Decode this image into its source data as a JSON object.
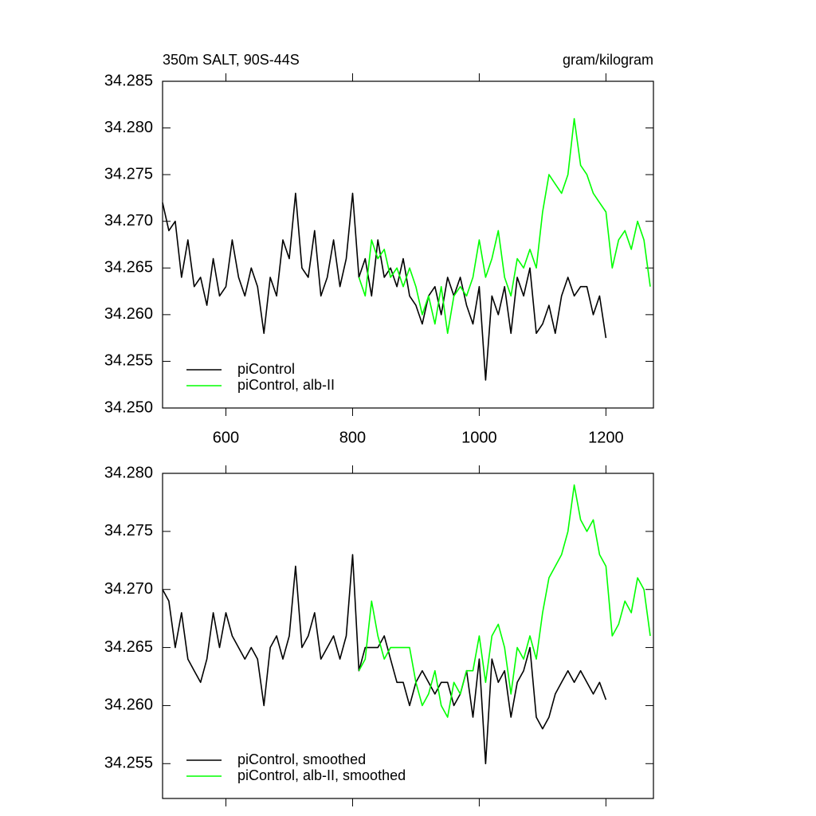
{
  "chart_data": [
    {
      "type": "line",
      "title": "350m SALT, 90S-44S",
      "subtitle": "gram/kilogram",
      "xlim": [
        500,
        1275
      ],
      "xticks": [
        600,
        800,
        1000,
        1200
      ],
      "xtick_labels": true,
      "ylim": [
        34.25,
        34.285
      ],
      "yticks": [
        {
          "value": 34.25,
          "label": "34.250"
        },
        34.255,
        {
          "value": 34.26,
          "label": "34.260"
        },
        34.265,
        {
          "value": 34.27,
          "label": "34.270"
        },
        34.275,
        {
          "value": 34.28,
          "label": "34.280"
        },
        34.285
      ],
      "legend": "lower left",
      "series": [
        {
          "name": "piControl",
          "color": "#000000",
          "x": [
            500,
            510,
            520,
            530,
            540,
            550,
            560,
            570,
            580,
            590,
            600,
            610,
            620,
            630,
            640,
            650,
            660,
            670,
            680,
            690,
            700,
            710,
            720,
            730,
            740,
            750,
            760,
            770,
            780,
            790,
            800,
            810,
            820,
            830,
            840,
            850,
            860,
            870,
            880,
            890,
            900,
            910,
            920,
            930,
            940,
            950,
            960,
            970,
            980,
            990,
            1000,
            1010,
            1020,
            1030,
            1040,
            1050,
            1060,
            1070,
            1080,
            1090,
            1100,
            1110,
            1120,
            1130,
            1140,
            1150,
            1160,
            1170,
            1180,
            1190,
            1200
          ],
          "values": [
            34.272,
            34.269,
            34.27,
            34.264,
            34.268,
            34.263,
            34.264,
            34.261,
            34.266,
            34.262,
            34.263,
            34.268,
            34.264,
            34.262,
            34.265,
            34.263,
            34.258,
            34.264,
            34.262,
            34.268,
            34.266,
            34.273,
            34.265,
            34.264,
            34.269,
            34.262,
            34.264,
            34.268,
            34.263,
            34.266,
            34.273,
            34.264,
            34.266,
            34.262,
            34.268,
            34.264,
            34.265,
            34.263,
            34.266,
            34.262,
            34.261,
            34.259,
            34.262,
            34.263,
            34.26,
            34.264,
            34.262,
            34.264,
            34.261,
            34.259,
            34.263,
            34.253,
            34.262,
            34.26,
            34.263,
            34.258,
            34.264,
            34.262,
            34.265,
            34.258,
            34.259,
            34.261,
            34.258,
            34.262,
            34.264,
            34.262,
            34.263,
            34.263,
            34.26,
            34.262,
            34.2575
          ]
        },
        {
          "name": "piControl, alb-II",
          "color": "#00ff00",
          "x": [
            810,
            820,
            830,
            840,
            850,
            860,
            870,
            880,
            890,
            900,
            910,
            920,
            930,
            940,
            950,
            960,
            970,
            980,
            990,
            1000,
            1010,
            1020,
            1030,
            1040,
            1050,
            1060,
            1070,
            1080,
            1090,
            1100,
            1110,
            1120,
            1130,
            1140,
            1150,
            1160,
            1170,
            1180,
            1190,
            1200,
            1210,
            1220,
            1230,
            1240,
            1250,
            1260,
            1270
          ],
          "values": [
            34.264,
            34.262,
            34.268,
            34.266,
            34.267,
            34.264,
            34.265,
            34.263,
            34.265,
            34.263,
            34.26,
            34.262,
            34.259,
            34.263,
            34.258,
            34.262,
            34.263,
            34.262,
            34.264,
            34.268,
            34.264,
            34.266,
            34.269,
            34.264,
            34.262,
            34.266,
            34.265,
            34.267,
            34.265,
            34.271,
            34.275,
            34.274,
            34.273,
            34.275,
            34.281,
            34.276,
            34.275,
            34.273,
            34.272,
            34.271,
            34.265,
            34.268,
            34.269,
            34.267,
            34.27,
            34.268,
            34.263
          ]
        }
      ]
    },
    {
      "type": "line",
      "xlim": [
        500,
        1275
      ],
      "xticks": [
        600,
        800,
        1000,
        1200
      ],
      "xtick_labels": false,
      "ylim": [
        34.252,
        34.28
      ],
      "yticks": [
        34.255,
        {
          "value": 34.26,
          "label": "34.260"
        },
        34.265,
        {
          "value": 34.27,
          "label": "34.270"
        },
        34.275,
        {
          "value": 34.28,
          "label": "34.280"
        }
      ],
      "legend": "lower left",
      "series": [
        {
          "name": "piControl, smoothed",
          "color": "#000000",
          "x": [
            500,
            510,
            520,
            530,
            540,
            550,
            560,
            570,
            580,
            590,
            600,
            610,
            620,
            630,
            640,
            650,
            660,
            670,
            680,
            690,
            700,
            710,
            720,
            730,
            740,
            750,
            760,
            770,
            780,
            790,
            800,
            810,
            820,
            830,
            840,
            850,
            860,
            870,
            880,
            890,
            900,
            910,
            920,
            930,
            940,
            950,
            960,
            970,
            980,
            990,
            1000,
            1010,
            1020,
            1030,
            1040,
            1050,
            1060,
            1070,
            1080,
            1090,
            1100,
            1110,
            1120,
            1130,
            1140,
            1150,
            1160,
            1170,
            1180,
            1190,
            1200
          ],
          "values": [
            34.27,
            34.269,
            34.265,
            34.268,
            34.264,
            34.263,
            34.262,
            34.264,
            34.268,
            34.265,
            34.268,
            34.266,
            34.265,
            34.264,
            34.265,
            34.264,
            34.26,
            34.265,
            34.266,
            34.264,
            34.266,
            34.272,
            34.265,
            34.266,
            34.268,
            34.264,
            34.265,
            34.266,
            34.264,
            34.266,
            34.273,
            34.263,
            34.265,
            34.265,
            34.265,
            34.266,
            34.264,
            34.262,
            34.262,
            34.26,
            34.262,
            34.263,
            34.262,
            34.261,
            34.262,
            34.262,
            34.26,
            34.261,
            34.263,
            34.259,
            34.264,
            34.255,
            34.264,
            34.262,
            34.263,
            34.259,
            34.262,
            34.263,
            34.265,
            34.259,
            34.258,
            34.259,
            34.261,
            34.262,
            34.263,
            34.262,
            34.263,
            34.262,
            34.261,
            34.262,
            34.2605
          ]
        },
        {
          "name": "piControl, alb-II, smoothed",
          "color": "#00ff00",
          "x": [
            810,
            820,
            830,
            840,
            850,
            860,
            870,
            880,
            890,
            900,
            910,
            920,
            930,
            940,
            950,
            960,
            970,
            980,
            990,
            1000,
            1010,
            1020,
            1030,
            1040,
            1050,
            1060,
            1070,
            1080,
            1090,
            1100,
            1110,
            1120,
            1130,
            1140,
            1150,
            1160,
            1170,
            1180,
            1190,
            1200,
            1210,
            1220,
            1230,
            1240,
            1250,
            1260,
            1270
          ],
          "values": [
            34.263,
            34.264,
            34.269,
            34.266,
            34.264,
            34.265,
            34.265,
            34.265,
            34.265,
            34.262,
            34.26,
            34.261,
            34.263,
            34.26,
            34.259,
            34.262,
            34.261,
            34.263,
            34.263,
            34.266,
            34.262,
            34.266,
            34.267,
            34.265,
            34.261,
            34.265,
            34.264,
            34.266,
            34.264,
            34.268,
            34.271,
            34.272,
            34.273,
            34.275,
            34.279,
            34.276,
            34.275,
            34.276,
            34.273,
            34.272,
            34.266,
            34.267,
            34.269,
            34.268,
            34.271,
            34.27,
            34.266
          ]
        }
      ]
    }
  ]
}
